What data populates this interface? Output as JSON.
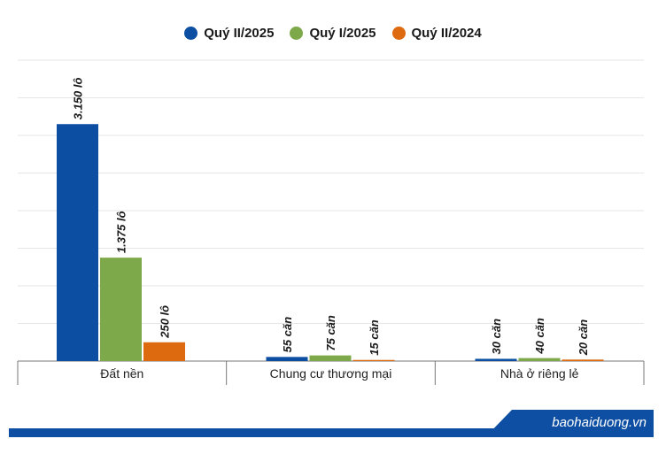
{
  "chart_data": {
    "type": "bar",
    "categories": [
      "Đất nền",
      "Chung cư thương mại",
      "Nhà ở riêng lẻ"
    ],
    "series": [
      {
        "name": "Quý II/2025",
        "color": "#0b4ea2",
        "values": [
          3150,
          55,
          30
        ],
        "labels": [
          "3.150 lô",
          "55 căn",
          "30 căn"
        ]
      },
      {
        "name": "Quý I/2025",
        "color": "#7ea94b",
        "values": [
          1375,
          75,
          40
        ],
        "labels": [
          "1.375 lô",
          "75 căn",
          "40 căn"
        ]
      },
      {
        "name": "Quý II/2024",
        "color": "#dd6a0f",
        "values": [
          250,
          15,
          20
        ],
        "labels": [
          "250 lô",
          "15 căn",
          "20 căn"
        ]
      }
    ],
    "ylim": [
      0,
      4000
    ],
    "grid": true,
    "legend_position": "top-center"
  },
  "footer": {
    "brand": "baohaiduong.vn"
  }
}
